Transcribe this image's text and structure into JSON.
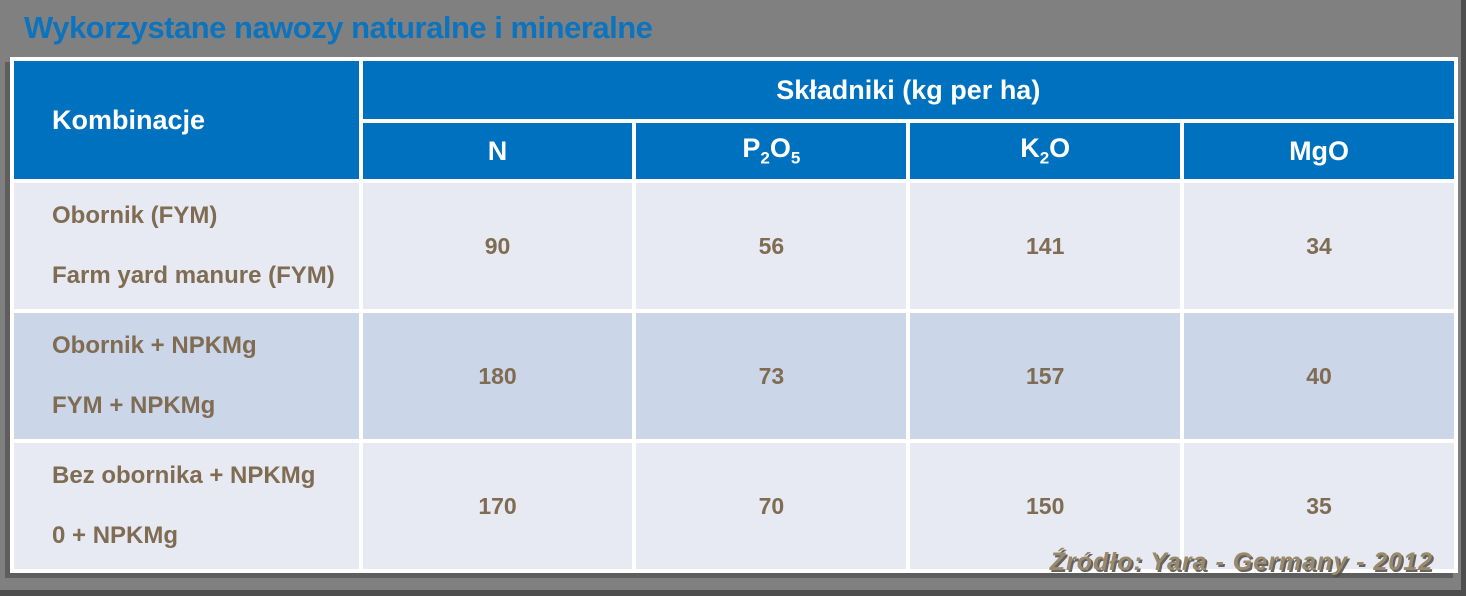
{
  "page": {
    "title": "Wykorzystane nawozy naturalne i mineralne",
    "source": "Źródło: Yara - Germany - 2012"
  },
  "table": {
    "kombinacje_header": "Kombinacje",
    "group_header": "Składniki (kg per ha)",
    "columns": [
      "N",
      "P_2O_5",
      "K_2O",
      "MgO"
    ],
    "rows": [
      {
        "name_pl": "Obornik (FYM)",
        "name_en": "Farm yard manure (FYM)",
        "values": [
          90,
          56,
          141,
          34
        ]
      },
      {
        "name_pl": "Obornik + NPKMg",
        "name_en": "FYM + NPKMg",
        "values": [
          180,
          73,
          157,
          40
        ]
      },
      {
        "name_pl": "Bez obornika + NPKMg",
        "name_en": "0 + NPKMg",
        "values": [
          170,
          70,
          150,
          35
        ]
      }
    ]
  },
  "chart_data": {
    "type": "table",
    "title": "Wykorzystane nawozy naturalne i mineralne",
    "column_headers": [
      "Kombinacje",
      "N",
      "P2O5",
      "K2O",
      "MgO"
    ],
    "units": "kg per ha",
    "rows": [
      [
        "Obornik (FYM) / Farm yard manure (FYM)",
        90,
        56,
        141,
        34
      ],
      [
        "Obornik + NPKMg / FYM + NPKMg",
        180,
        73,
        157,
        40
      ],
      [
        "Bez obornika + NPKMg / 0 + NPKMg",
        170,
        70,
        150,
        35
      ]
    ],
    "source": "Źródło: Yara - Germany - 2012"
  },
  "colors": {
    "background": "#808080",
    "title_blue": "#0c74be",
    "header_blue": "#0071be",
    "row_light": "#e7eaf3",
    "row_dark": "#ccd6e9",
    "cell_text_brown": "#7f6c52",
    "source_tan": "#9b8a69"
  }
}
